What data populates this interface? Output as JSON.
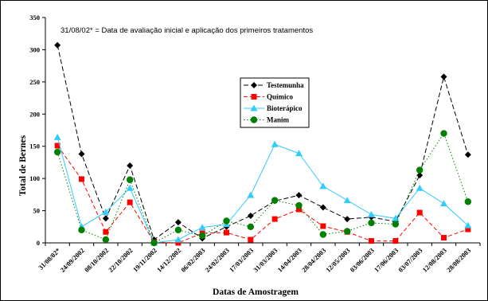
{
  "chart_data": {
    "type": "line",
    "title": "",
    "annotation": "31/08/02* = Data de avaliação inicial e aplicação dos primeiros tratamentos",
    "xlabel": "Datas de Amostragem",
    "ylabel": "Total de Bernes",
    "ylim": [
      0,
      350
    ],
    "yticks": [
      0,
      50,
      100,
      150,
      200,
      250,
      300,
      350
    ],
    "grid": false,
    "legend_position": "center",
    "categories": [
      "31/08/02*",
      "24/09/2002",
      "08/10/2002",
      "22/10/2002",
      "19/11/2002",
      "14/12/2002",
      "06/02/2003",
      "24/02/2003",
      "17/03/2003",
      "31/03/2003",
      "14/04/2003",
      "28/04/2003",
      "12/05/2003",
      "03/06/2003",
      "17/06/2003",
      "03/07/2003",
      "12/08/2003",
      "28/08/2003"
    ],
    "series": [
      {
        "name": "Testemunha",
        "color": "#000000",
        "marker": "diamond",
        "dash": "6,3",
        "values": [
          307,
          138,
          38,
          120,
          5,
          32,
          7,
          25,
          42,
          65,
          74,
          55,
          37,
          40,
          33,
          105,
          258,
          137
        ]
      },
      {
        "name": "Químico",
        "color": "#ff0000",
        "marker": "square",
        "dash": "5,3",
        "values": [
          151,
          99,
          17,
          63,
          1,
          0,
          15,
          16,
          5,
          37,
          52,
          26,
          17,
          3,
          3,
          47,
          8,
          21
        ]
      },
      {
        "name": "Bioterápico",
        "color": "#33ccff",
        "marker": "triangle",
        "dash": "",
        "values": [
          164,
          25,
          48,
          85,
          0,
          5,
          24,
          29,
          74,
          153,
          139,
          88,
          66,
          44,
          38,
          85,
          61,
          27
        ]
      },
      {
        "name": "Manim",
        "color": "#008000",
        "marker": "circle",
        "dash": "1.5,2.5",
        "values": [
          141,
          20,
          5,
          98,
          0,
          20,
          11,
          34,
          25,
          66,
          58,
          13,
          18,
          31,
          29,
          113,
          170,
          64
        ]
      }
    ]
  }
}
